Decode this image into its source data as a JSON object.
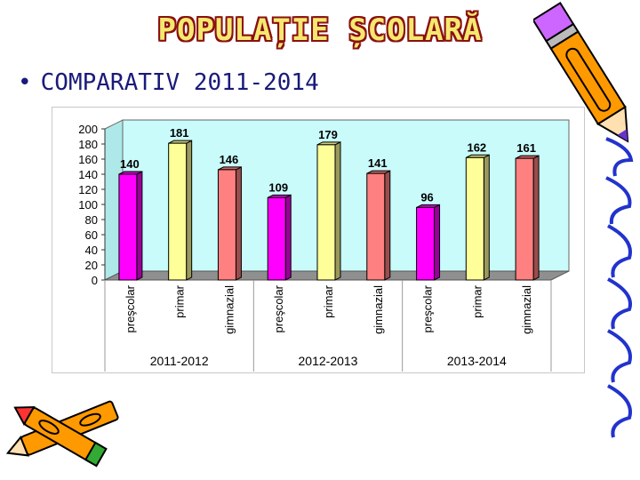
{
  "slide": {
    "title": "POPULAȚIE ȘCOLARĂ",
    "subtitle": "COMPARATIV 2011-2014",
    "bullet": "•"
  },
  "colors": {
    "preschool": "#ff00ff",
    "primary": "#ffff99",
    "gymnasium": "#ff8080",
    "plot_background": "#c9fbfb",
    "floor": "#8f8f8f"
  },
  "icons": [
    "pencil-icon",
    "crayons-icon",
    "spiral-binding-icon"
  ],
  "chart_data": {
    "type": "bar",
    "title": "",
    "xlabel": "",
    "ylabel": "",
    "ylim": [
      0,
      200
    ],
    "yticks": [
      0,
      20,
      40,
      60,
      80,
      100,
      120,
      140,
      160,
      180,
      200
    ],
    "grid": false,
    "legend": "none",
    "style": "3d",
    "groups": [
      {
        "label": "2011-2012",
        "categories": [
          "preşcolar",
          "primar",
          "gimnazial"
        ],
        "values": [
          140,
          181,
          146
        ]
      },
      {
        "label": "2012-2013",
        "categories": [
          "preşcolar",
          "primar",
          "gimnazial"
        ],
        "values": [
          109,
          179,
          141
        ]
      },
      {
        "label": "2013-2014",
        "categories": [
          "preşcolar",
          "primar",
          "gimnazial"
        ],
        "values": [
          96,
          162,
          161
        ]
      }
    ]
  }
}
